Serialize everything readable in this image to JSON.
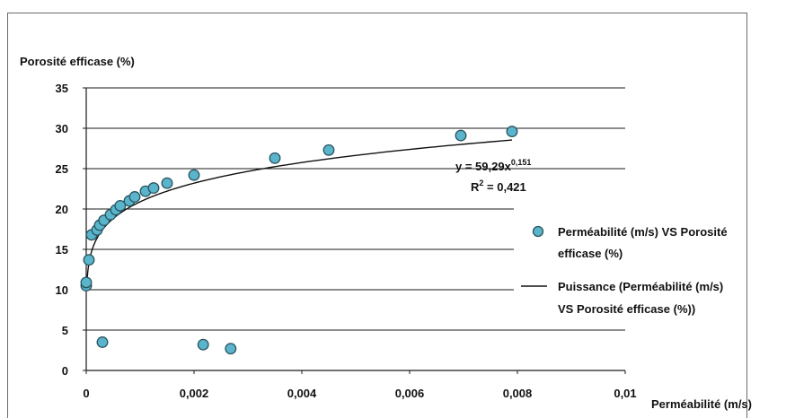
{
  "chart_data": {
    "type": "scatter",
    "ylabel": "Porosité efficase (%)",
    "xlabel": "Perméabilité (m/s)",
    "xlim": [
      0,
      0.01
    ],
    "ylim": [
      0,
      35
    ],
    "x_ticks": [
      "0",
      "0,002",
      "0,004",
      "0,006",
      "0,008",
      "0,01"
    ],
    "y_ticks": [
      "0",
      "5",
      "10",
      "15",
      "20",
      "25",
      "30",
      "35"
    ],
    "grid": "horizontal",
    "legend_position": "right",
    "series": [
      {
        "name": "Perméabilité (m/s) VS Porosité efficase (%)",
        "kind": "scatter",
        "color": "#5ab4cc",
        "points": [
          {
            "x": 0.0,
            "y": 10.5
          },
          {
            "x": 0.0,
            "y": 10.9
          },
          {
            "x": 5e-05,
            "y": 13.7
          },
          {
            "x": 0.0001,
            "y": 16.8
          },
          {
            "x": 0.0002,
            "y": 17.4
          },
          {
            "x": 0.00025,
            "y": 18.0
          },
          {
            "x": 0.0003,
            "y": 3.5
          },
          {
            "x": 0.00033,
            "y": 18.6
          },
          {
            "x": 0.00045,
            "y": 19.3
          },
          {
            "x": 0.00055,
            "y": 19.9
          },
          {
            "x": 0.00063,
            "y": 20.4
          },
          {
            "x": 0.0008,
            "y": 21.0
          },
          {
            "x": 0.0009,
            "y": 21.5
          },
          {
            "x": 0.0011,
            "y": 22.2
          },
          {
            "x": 0.00125,
            "y": 22.6
          },
          {
            "x": 0.0015,
            "y": 23.2
          },
          {
            "x": 0.002,
            "y": 24.2
          },
          {
            "x": 0.00217,
            "y": 3.2
          },
          {
            "x": 0.00268,
            "y": 2.7
          },
          {
            "x": 0.0035,
            "y": 26.3
          },
          {
            "x": 0.0045,
            "y": 27.3
          },
          {
            "x": 0.00695,
            "y": 29.1
          },
          {
            "x": 0.0079,
            "y": 29.6
          }
        ]
      },
      {
        "name": "Puissance (Perméabilité (m/s) VS Porosité efficase (%))",
        "kind": "trendline",
        "color": "#111111",
        "model": "power",
        "coefficient": 59.29,
        "exponent": 0.151,
        "x_range": [
          1e-05,
          0.0079
        ]
      }
    ],
    "annotations": {
      "equation_prefix": "y = 59,29x",
      "equation_exponent": "0,151",
      "r_squared_prefix": "R",
      "r_squared_sup": "2",
      "r_squared_suffix": " = 0,421"
    }
  }
}
